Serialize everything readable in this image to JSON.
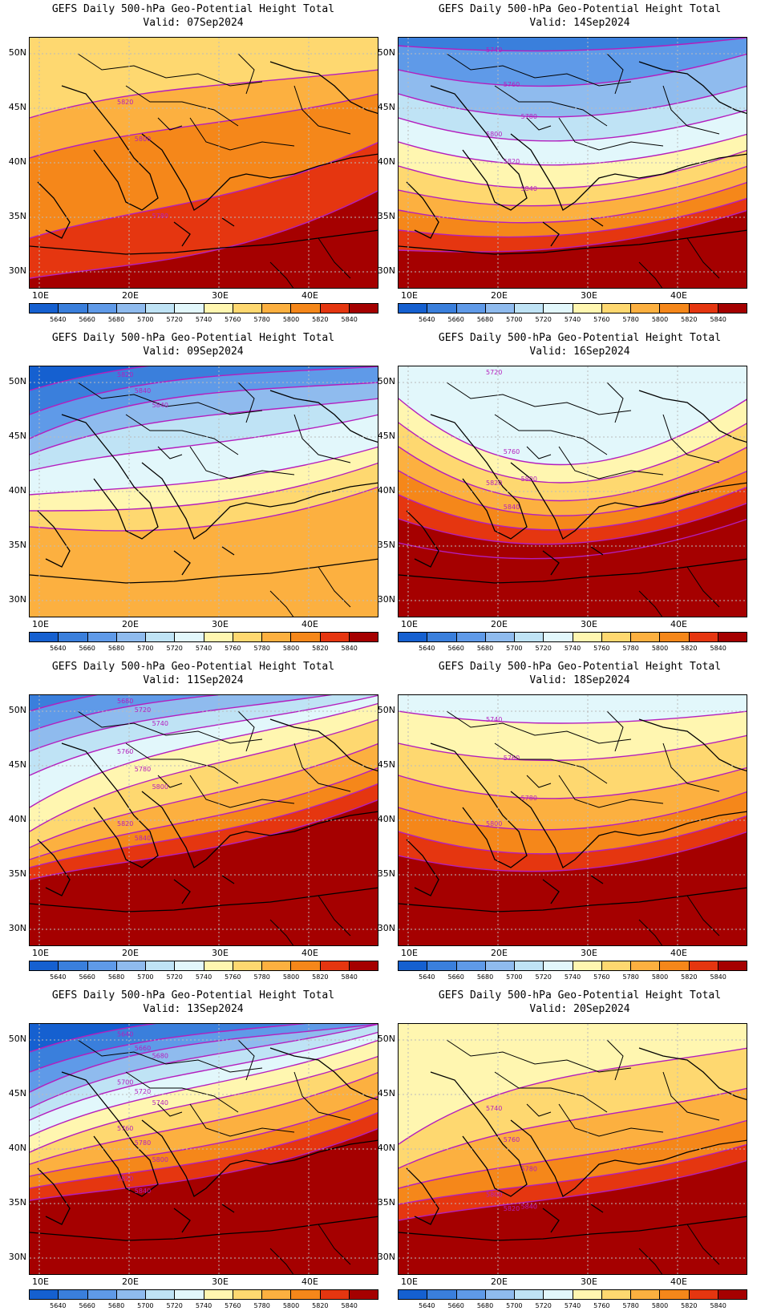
{
  "colorbar": {
    "levels": [
      "5640",
      "5660",
      "5680",
      "5700",
      "5720",
      "5740",
      "5760",
      "5780",
      "5800",
      "5820",
      "5840"
    ],
    "colors": [
      "#1560d0",
      "#3a7fdc",
      "#5f9ae8",
      "#8fbbee",
      "#bfe3f5",
      "#e2f7fb",
      "#fff6b0",
      "#fed870",
      "#fcb040",
      "#f5871a",
      "#e53610",
      "#a50000"
    ]
  },
  "contour_color": "#b41ebe",
  "land_outline_color": "#000000",
  "grid_color": "#bbbbbb",
  "lat_ticks": [
    "50N",
    "45N",
    "40N",
    "35N",
    "30N"
  ],
  "lon_ticks": [
    "10E",
    "20E",
    "30E",
    "40E"
  ],
  "panels": [
    {
      "title": "GEFS Daily 500-hPa Geo-Potential Height Total",
      "valid": "Valid: 07Sep2024",
      "contour_labels": [
        "5820",
        "5800",
        "5780"
      ]
    },
    {
      "title": "GEFS Daily 500-hPa Geo-Potential Height Total",
      "valid": "Valid: 14Sep2024",
      "contour_labels": [
        "5740",
        "5760",
        "5780",
        "5800",
        "5820",
        "5840"
      ]
    },
    {
      "title": "GEFS Daily 500-hPa Geo-Potential Height Total",
      "valid": "Valid: 09Sep2024",
      "contour_labels": [
        "5820",
        "5840",
        "5840"
      ]
    },
    {
      "title": "GEFS Daily 500-hPa Geo-Potential Height Total",
      "valid": "Valid: 16Sep2024",
      "contour_labels": [
        "5720",
        "5760",
        "5800",
        "5820",
        "5840"
      ]
    },
    {
      "title": "GEFS Daily 500-hPa Geo-Potential Height Total",
      "valid": "Valid: 11Sep2024",
      "contour_labels": [
        "5680",
        "5720",
        "5740",
        "5760",
        "5780",
        "5800",
        "5820",
        "5840"
      ]
    },
    {
      "title": "GEFS Daily 500-hPa Geo-Potential Height Total",
      "valid": "Valid: 18Sep2024",
      "contour_labels": [
        "5740",
        "5760",
        "5780",
        "5800"
      ]
    },
    {
      "title": "GEFS Daily 500-hPa Geo-Potential Height Total",
      "valid": "Valid: 13Sep2024",
      "contour_labels": [
        "5640",
        "5660",
        "5680",
        "5700",
        "5720",
        "5740",
        "5760",
        "5780",
        "5800",
        "5820",
        "5840"
      ]
    },
    {
      "title": "GEFS Daily 500-hPa Geo-Potential Height Total",
      "valid": "Valid: 20Sep2024",
      "contour_labels": [
        "5740",
        "5760",
        "5780",
        "5800",
        "5820",
        "5840"
      ]
    }
  ]
}
